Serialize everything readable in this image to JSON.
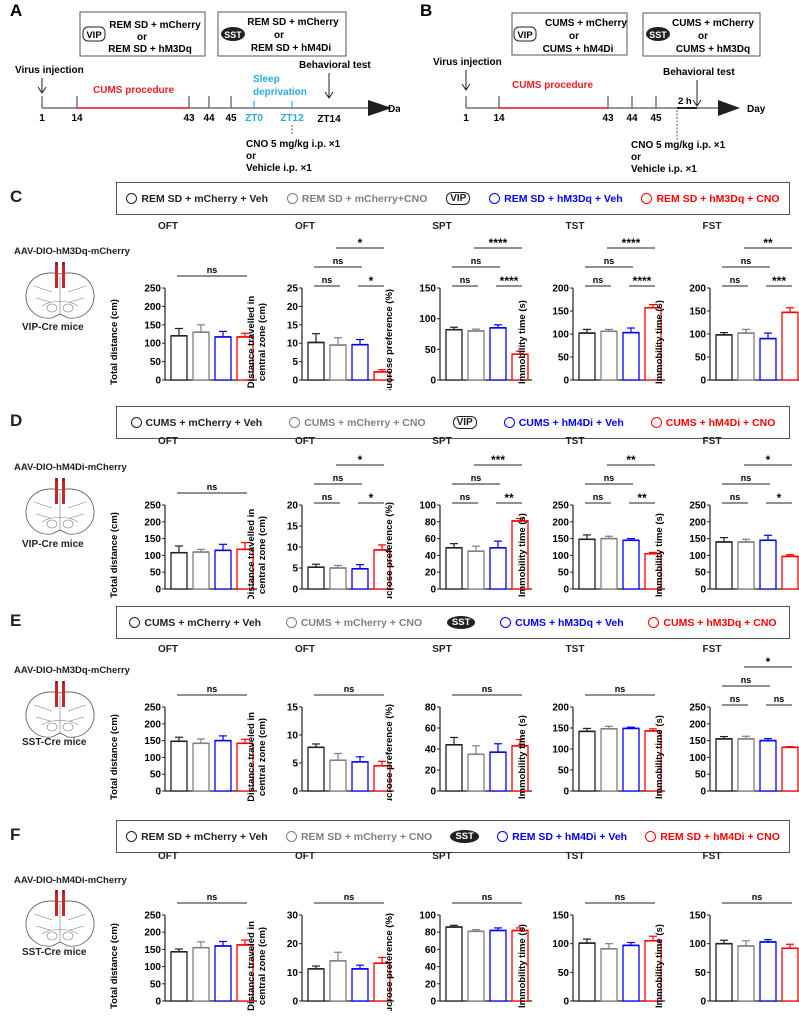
{
  "panel_a": {
    "letter": "A",
    "box_vip": {
      "badge": "VIP",
      "line1": "REM SD + mCherry",
      "or": "or",
      "line2": "REM SD + hM3Dq"
    },
    "box_sst": {
      "badge": "SST",
      "line1": "REM SD + mCherry",
      "or": "or",
      "line2": "REM SD + hM4Di"
    },
    "virus_injection": "Virus injection",
    "procedure": "CUMS  procedure",
    "sleep1": "Sleep",
    "sleep2": "deprivation",
    "behavioral_test": "Behavioral test",
    "ticks": [
      "1",
      "14",
      "43",
      "44",
      "45",
      "ZT0",
      "ZT12",
      "ZT14"
    ],
    "cno1": "CNO 5 mg/kg i.p. ×1",
    "cno_or": "or",
    "cno2": "Vehicle i.p. ×1",
    "day": "Day"
  },
  "panel_b": {
    "letter": "B",
    "box_vip": {
      "badge": "VIP",
      "line1": "CUMS + mCherry",
      "or": "or",
      "line2": "CUMS + hM4Di"
    },
    "box_sst": {
      "badge": "SST",
      "line1": "CUMS + mCherry",
      "or": "or",
      "line2": "CUMS + hM3Dq"
    },
    "virus_injection": "Virus injection",
    "procedure": "CUMS  procedure",
    "behavioral_test": "Behavioral test",
    "two_h": "2 h",
    "ticks": [
      "1",
      "14",
      "43",
      "44",
      "45"
    ],
    "cno1": "CNO 5 mg/kg i.p. ×1",
    "cno_or": "or",
    "cno2": "Vehicle i.p. ×1",
    "day": "Day"
  },
  "colors": {
    "group1": "#231f20",
    "group2": "#808080",
    "group3": "#0000ff",
    "group4": "#ff0000",
    "timeline_red": "#ed1c24",
    "timeline_blue": "#29abe2"
  },
  "rows": [
    {
      "letter": "C",
      "virus": "AAV-DIO-hM3Dq-mCherry",
      "mice": "VIP-Cre mice",
      "badge": "VIP",
      "badge_type": "vip",
      "legend": [
        "REM SD + mCherry + Veh",
        "REM SD + mCherry+CNO",
        "REM SD + hM3Dq + Veh",
        "REM SD + hM3Dq + CNO"
      ]
    },
    {
      "letter": "D",
      "virus": "AAV-DIO-hM4Di-mCherry",
      "mice": "VIP-Cre mice",
      "badge": "VIP",
      "badge_type": "vip",
      "legend": [
        "CUMS + mCherry + Veh",
        "CUMS + mCherry + CNO",
        "CUMS + hM4Di + Veh",
        "CUMS + hM4Di + CNO"
      ]
    },
    {
      "letter": "E",
      "virus": "AAV-DIO-hM3Dq-mCherry",
      "mice": "SST-Cre mice",
      "badge": "SST",
      "badge_type": "sst",
      "legend": [
        "CUMS + mCherry + Veh",
        "CUMS + mCherry + CNO",
        "CUMS + hM3Dq + Veh",
        "CUMS + hM3Dq + CNO"
      ]
    },
    {
      "letter": "F",
      "virus": "AAV-DIO-hM4Di-mCherry",
      "mice": "SST-Cre mice",
      "badge": "SST",
      "badge_type": "sst",
      "legend": [
        "REM SD + mCherry + Veh",
        "REM SD + mCherry + CNO",
        "REM SD + hM4Di + Veh",
        "REM SD + hM4Di + CNO"
      ]
    }
  ],
  "chart_data": [
    {
      "panel": "C",
      "type": "bar",
      "charts": [
        {
          "title": "OFT",
          "ylabel": [
            "Total distance (cm)"
          ],
          "ylim": [
            0,
            250
          ],
          "ystep": 50,
          "values": [
            120,
            130,
            117,
            117
          ],
          "sem": [
            20,
            20,
            15,
            10
          ],
          "sig": [
            {
              "from": 1,
              "to": 4,
              "label": "ns",
              "level": 0
            }
          ]
        },
        {
          "title": "OFT",
          "ylabel": [
            "Distance travelled in",
            "central zone (cm)"
          ],
          "ylim": [
            0,
            25
          ],
          "ystep": 5,
          "values": [
            10.2,
            9.5,
            9.6,
            2.2
          ],
          "sem": [
            2.4,
            2,
            1.4,
            0.6
          ],
          "sig": [
            {
              "from": 1,
              "to": 2,
              "label": "ns",
              "level": 0
            },
            {
              "from": 3,
              "to": 4,
              "label": "*",
              "level": 0
            },
            {
              "from": 1,
              "to": 3,
              "label": "ns",
              "level": 1
            },
            {
              "from": 2,
              "to": 4,
              "label": "*",
              "level": 2
            }
          ]
        },
        {
          "title": "SPT",
          "ylabel": [
            "Sucrose preference (%)"
          ],
          "ylim": [
            0,
            150
          ],
          "ystep": 50,
          "values": [
            82,
            80,
            85,
            42
          ],
          "sem": [
            4,
            3,
            5,
            5
          ],
          "sig": [
            {
              "from": 1,
              "to": 2,
              "label": "ns",
              "level": 0
            },
            {
              "from": 3,
              "to": 4,
              "label": "****",
              "level": 0
            },
            {
              "from": 1,
              "to": 3,
              "label": "ns",
              "level": 1
            },
            {
              "from": 2,
              "to": 4,
              "label": "****",
              "level": 2
            }
          ]
        },
        {
          "title": "TST",
          "ylabel": [
            "Immobility time (s)"
          ],
          "ylim": [
            0,
            200
          ],
          "ystep": 50,
          "values": [
            102,
            106,
            103,
            157
          ],
          "sem": [
            8,
            4,
            10,
            7
          ],
          "sig": [
            {
              "from": 1,
              "to": 2,
              "label": "ns",
              "level": 0
            },
            {
              "from": 3,
              "to": 4,
              "label": "****",
              "level": 0
            },
            {
              "from": 1,
              "to": 3,
              "label": "ns",
              "level": 1
            },
            {
              "from": 2,
              "to": 4,
              "label": "****",
              "level": 2
            }
          ]
        },
        {
          "title": "FST",
          "ylabel": [
            "Immobility time (s)"
          ],
          "ylim": [
            0,
            200
          ],
          "ystep": 50,
          "values": [
            98,
            102,
            90,
            147
          ],
          "sem": [
            5,
            8,
            12,
            10
          ],
          "sig": [
            {
              "from": 1,
              "to": 2,
              "label": "ns",
              "level": 0
            },
            {
              "from": 3,
              "to": 4,
              "label": "***",
              "level": 0
            },
            {
              "from": 1,
              "to": 3,
              "label": "ns",
              "level": 1
            },
            {
              "from": 2,
              "to": 4,
              "label": "**",
              "level": 2
            }
          ]
        }
      ]
    },
    {
      "panel": "D",
      "type": "bar",
      "charts": [
        {
          "title": "OFT",
          "ylabel": [
            "Total distance (cm)"
          ],
          "ylim": [
            0,
            250
          ],
          "ystep": 50,
          "values": [
            108,
            110,
            115,
            118
          ],
          "sem": [
            20,
            8,
            18,
            20
          ],
          "sig": [
            {
              "from": 1,
              "to": 4,
              "label": "ns",
              "level": 0
            }
          ]
        },
        {
          "title": "OFT",
          "ylabel": [
            "Distance travelled in",
            "central zone (cm)"
          ],
          "ylim": [
            0,
            20
          ],
          "ystep": 5,
          "values": [
            5.2,
            5.0,
            4.8,
            9.3
          ],
          "sem": [
            0.7,
            0.6,
            1.0,
            1.2
          ],
          "sig": [
            {
              "from": 1,
              "to": 2,
              "label": "ns",
              "level": 0
            },
            {
              "from": 3,
              "to": 4,
              "label": "*",
              "level": 0
            },
            {
              "from": 1,
              "to": 3,
              "label": "ns",
              "level": 1
            },
            {
              "from": 2,
              "to": 4,
              "label": "*",
              "level": 2
            }
          ]
        },
        {
          "title": "SPT",
          "ylabel": [
            "Sucrose preference (%)"
          ],
          "ylim": [
            0,
            100
          ],
          "ystep": 20,
          "values": [
            49,
            45,
            49,
            81
          ],
          "sem": [
            5,
            6,
            8,
            3
          ],
          "sig": [
            {
              "from": 1,
              "to": 2,
              "label": "ns",
              "level": 0
            },
            {
              "from": 3,
              "to": 4,
              "label": "**",
              "level": 0
            },
            {
              "from": 1,
              "to": 3,
              "label": "ns",
              "level": 1
            },
            {
              "from": 2,
              "to": 4,
              "label": "***",
              "level": 2
            }
          ]
        },
        {
          "title": "TST",
          "ylabel": [
            "Immobility time (s)"
          ],
          "ylim": [
            0,
            250
          ],
          "ystep": 50,
          "values": [
            148,
            150,
            145,
            105
          ],
          "sem": [
            13,
            7,
            5,
            4
          ],
          "sig": [
            {
              "from": 1,
              "to": 2,
              "label": "ns",
              "level": 0
            },
            {
              "from": 3,
              "to": 4,
              "label": "**",
              "level": 0
            },
            {
              "from": 1,
              "to": 3,
              "label": "ns",
              "level": 1
            },
            {
              "from": 2,
              "to": 4,
              "label": "**",
              "level": 2
            }
          ]
        },
        {
          "title": "FST",
          "ylabel": [
            "Immobility time (s)"
          ],
          "ylim": [
            0,
            250
          ],
          "ystep": 50,
          "values": [
            140,
            140,
            145,
            97
          ],
          "sem": [
            13,
            8,
            15,
            5
          ],
          "sig": [
            {
              "from": 1,
              "to": 2,
              "label": "ns",
              "level": 0
            },
            {
              "from": 3,
              "to": 4,
              "label": "*",
              "level": 0
            },
            {
              "from": 1,
              "to": 3,
              "label": "ns",
              "level": 1
            },
            {
              "from": 2,
              "to": 4,
              "label": "*",
              "level": 2
            }
          ]
        }
      ]
    },
    {
      "panel": "E",
      "type": "bar",
      "charts": [
        {
          "title": "OFT",
          "ylabel": [
            "Total distance (cm)"
          ],
          "ylim": [
            0,
            250
          ],
          "ystep": 50,
          "values": [
            148,
            142,
            150,
            142
          ],
          "sem": [
            12,
            13,
            14,
            12
          ],
          "sig": [
            {
              "from": 1,
              "to": 4,
              "label": "ns",
              "level": 0
            }
          ]
        },
        {
          "title": "OFT",
          "ylabel": [
            "Distance traveled in",
            "central zone (cm)"
          ],
          "ylim": [
            0,
            15
          ],
          "ystep": 5,
          "values": [
            7.8,
            5.5,
            5.2,
            4.5
          ],
          "sem": [
            0.6,
            1.2,
            0.9,
            0.8
          ],
          "sig": [
            {
              "from": 1,
              "to": 4,
              "label": "ns",
              "level": 0
            }
          ]
        },
        {
          "title": "SPT",
          "ylabel": [
            "Sucrose preference (%)"
          ],
          "ylim": [
            0,
            80
          ],
          "ystep": 20,
          "values": [
            44,
            35,
            37,
            43
          ],
          "sem": [
            7,
            8,
            8,
            6
          ],
          "sig": [
            {
              "from": 1,
              "to": 4,
              "label": "ns",
              "level": 0
            }
          ]
        },
        {
          "title": "TST",
          "ylabel": [
            "Immobility time (s)"
          ],
          "ylim": [
            0,
            200
          ],
          "ystep": 50,
          "values": [
            142,
            148,
            149,
            143
          ],
          "sem": [
            7,
            6,
            3,
            5
          ],
          "sig": [
            {
              "from": 1,
              "to": 4,
              "label": "ns",
              "level": 0
            }
          ]
        },
        {
          "title": "FST",
          "ylabel": [
            "Immobility time (s)"
          ],
          "ylim": [
            0,
            250
          ],
          "ystep": 50,
          "values": [
            155,
            155,
            150,
            130
          ],
          "sem": [
            7,
            8,
            6,
            2
          ],
          "sig": [
            {
              "from": 1,
              "to": 2,
              "label": "ns",
              "level": 0
            },
            {
              "from": 3,
              "to": 4,
              "label": "ns",
              "level": 0
            },
            {
              "from": 1,
              "to": 3,
              "label": "ns",
              "level": 1
            },
            {
              "from": 2,
              "to": 4,
              "label": "*",
              "level": 2
            }
          ]
        }
      ]
    },
    {
      "panel": "F",
      "type": "bar",
      "charts": [
        {
          "title": "OFT",
          "ylabel": [
            "Total distance (cm)"
          ],
          "ylim": [
            0,
            250
          ],
          "ystep": 50,
          "values": [
            143,
            155,
            160,
            163
          ],
          "sem": [
            8,
            17,
            13,
            14
          ],
          "sig": [
            {
              "from": 1,
              "to": 4,
              "label": "ns",
              "level": 0
            }
          ]
        },
        {
          "title": "OFT",
          "ylabel": [
            "Distance traveled in",
            "central zone (cm)"
          ],
          "ylim": [
            0,
            30
          ],
          "ystep": 10,
          "values": [
            11.2,
            14,
            11.2,
            13.2
          ],
          "sem": [
            1,
            3,
            1.3,
            2
          ],
          "sig": [
            {
              "from": 1,
              "to": 4,
              "label": "ns",
              "level": 0
            }
          ]
        },
        {
          "title": "SPT",
          "ylabel": [
            "Sucrose preference (%)"
          ],
          "ylim": [
            0,
            100
          ],
          "ystep": 20,
          "values": [
            86,
            81,
            82,
            82
          ],
          "sem": [
            2,
            2,
            3,
            3
          ],
          "sig": [
            {
              "from": 1,
              "to": 4,
              "label": "ns",
              "level": 0
            }
          ]
        },
        {
          "title": "TST",
          "ylabel": [
            "Immobility time (s)"
          ],
          "ylim": [
            0,
            150
          ],
          "ystep": 50,
          "values": [
            101,
            91,
            97,
            105
          ],
          "sem": [
            7,
            9,
            5,
            8
          ],
          "sig": [
            {
              "from": 1,
              "to": 4,
              "label": "ns",
              "level": 0
            }
          ]
        },
        {
          "title": "FST",
          "ylabel": [
            "Immobility time (s)"
          ],
          "ylim": [
            0,
            150
          ],
          "ystep": 50,
          "values": [
            100,
            96,
            103,
            92
          ],
          "sem": [
            6,
            9,
            4,
            7
          ],
          "sig": [
            {
              "from": 1,
              "to": 4,
              "label": "ns",
              "level": 0
            }
          ]
        }
      ]
    }
  ]
}
